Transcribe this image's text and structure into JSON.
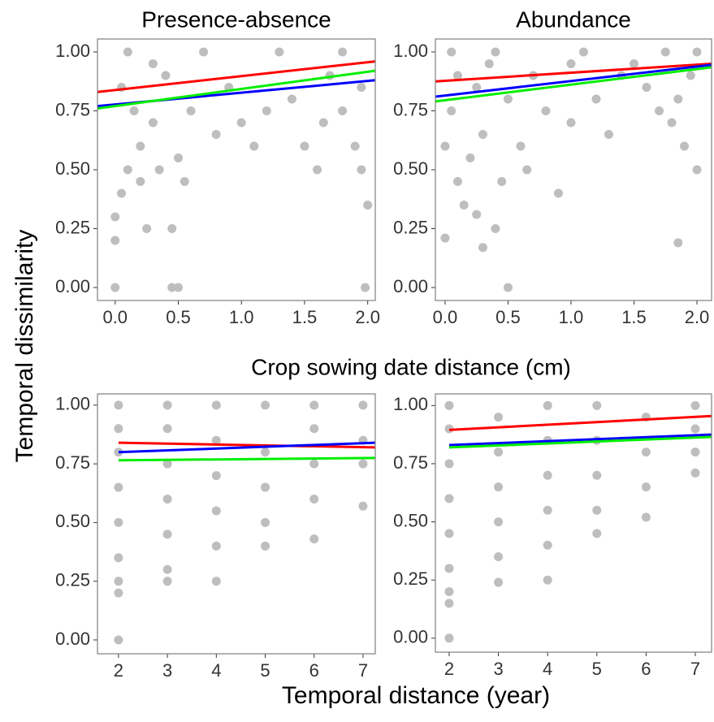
{
  "figure": {
    "ylabel": "Temporal dissimilarity",
    "xlabel": "Temporal distance (year)",
    "section_label": "Crop sowing date distance (cm)"
  },
  "chart_data": [
    {
      "type": "scatter",
      "title": "Presence-absence",
      "xlim": [
        -0.14,
        2.06
      ],
      "xticks": [
        {
          "value": 0,
          "label": "0.0"
        },
        {
          "value": 0.5,
          "label": "0.5"
        },
        {
          "value": 1,
          "label": "1.0"
        },
        {
          "value": 1.5,
          "label": "1.5"
        },
        {
          "value": 2,
          "label": "2.0"
        }
      ],
      "ylim": [
        -0.055,
        1.055
      ],
      "yticks": [
        {
          "value": 0,
          "label": "0.00"
        },
        {
          "value": 0.25,
          "label": "0.25"
        },
        {
          "value": 0.5,
          "label": "0.50"
        },
        {
          "value": 0.75,
          "label": "0.75"
        },
        {
          "value": 1,
          "label": "1.00"
        }
      ],
      "points": {
        "color": "#bebebe",
        "x": [
          0,
          0.45,
          0.5,
          1.98,
          0,
          0,
          0.05,
          0.1,
          0.2,
          0.3,
          0.4,
          0.5,
          0.6,
          0.25,
          0.45,
          0.7,
          0.8,
          0.9,
          1.0,
          1.1,
          1.2,
          1.3,
          1.4,
          1.5,
          1.6,
          1.7,
          1.8,
          1.9,
          2.0,
          1.95,
          0.1,
          0.3,
          0.15,
          0.35,
          0.55,
          1.8,
          1.95,
          1.65,
          0.05,
          0.2
        ],
        "values": [
          0,
          0,
          0,
          0,
          0.2,
          0.3,
          0.4,
          0.5,
          0.6,
          0.7,
          0.9,
          0.55,
          0.75,
          0.25,
          0.25,
          1,
          0.65,
          0.85,
          0.7,
          0.6,
          0.75,
          1,
          0.8,
          0.6,
          0.5,
          0.9,
          0.75,
          0.6,
          0.35,
          0.5,
          1,
          0.95,
          0.75,
          0.5,
          0.45,
          1,
          0.85,
          0.7,
          0.85,
          0.45
        ]
      },
      "series": [
        {
          "color": "#ff0000",
          "x": [
            -0.14,
            2.06
          ],
          "values": [
            0.83,
            0.96
          ]
        },
        {
          "color": "#0000ff",
          "x": [
            -0.14,
            2.06
          ],
          "values": [
            0.77,
            0.88
          ]
        },
        {
          "color": "#00ee00",
          "x": [
            -0.14,
            2.06
          ],
          "values": [
            0.76,
            0.92
          ]
        }
      ]
    },
    {
      "type": "scatter",
      "title": "Abundance",
      "xlim": [
        -0.077,
        2.116
      ],
      "xticks": [
        {
          "value": 0,
          "label": "0.0"
        },
        {
          "value": 0.5,
          "label": "0.5"
        },
        {
          "value": 1,
          "label": "1.0"
        },
        {
          "value": 1.5,
          "label": "1.5"
        },
        {
          "value": 2,
          "label": "2.0"
        }
      ],
      "ylim": [
        -0.055,
        1.055
      ],
      "yticks": [
        {
          "value": 0,
          "label": "0.00"
        },
        {
          "value": 0.25,
          "label": "0.25"
        },
        {
          "value": 0.5,
          "label": "0.50"
        },
        {
          "value": 0.75,
          "label": "0.75"
        },
        {
          "value": 1,
          "label": "1.00"
        }
      ],
      "points": {
        "color": "#bebebe",
        "x": [
          0.5,
          0,
          1.85,
          0.3,
          0.25,
          0.4,
          0.1,
          0.2,
          0.3,
          0.05,
          0.1,
          0.4,
          0.5,
          0.6,
          0.7,
          0.8,
          0.9,
          1.0,
          1.1,
          1.2,
          1.3,
          1.4,
          1.5,
          1.6,
          1.7,
          1.8,
          1.9,
          2.0,
          1.95,
          2.0,
          1.75,
          0.15,
          0.0,
          0.45,
          0.65,
          1.85,
          0.25,
          0.35,
          0.05,
          1.0
        ],
        "values": [
          0,
          0.21,
          0.19,
          0.17,
          0.31,
          0.25,
          0.45,
          0.55,
          0.65,
          0.75,
          0.9,
          1,
          0.8,
          0.6,
          0.9,
          0.75,
          0.4,
          0.7,
          1,
          0.8,
          0.65,
          0.9,
          0.95,
          0.85,
          0.75,
          0.7,
          0.6,
          0.5,
          0.9,
          1,
          1,
          0.35,
          0.6,
          0.45,
          0.5,
          0.8,
          0.85,
          0.95,
          1,
          0.95
        ]
      },
      "series": [
        {
          "color": "#ff0000",
          "x": [
            -0.077,
            2.116
          ],
          "values": [
            0.875,
            0.95
          ]
        },
        {
          "color": "#0000ff",
          "x": [
            -0.077,
            2.116
          ],
          "values": [
            0.81,
            0.945
          ]
        },
        {
          "color": "#00ee00",
          "x": [
            -0.077,
            2.116
          ],
          "values": [
            0.79,
            0.935
          ]
        }
      ]
    },
    {
      "type": "scatter",
      "xlim": [
        1.57,
        7.25
      ],
      "xticks": [
        2,
        3,
        4,
        5,
        6,
        7
      ],
      "ylim": [
        -0.059,
        1.048
      ],
      "yticks": [
        {
          "value": 0,
          "label": "0.00"
        },
        {
          "value": 0.25,
          "label": "0.25"
        },
        {
          "value": 0.5,
          "label": "0.50"
        },
        {
          "value": 0.75,
          "label": "0.75"
        },
        {
          "value": 1,
          "label": "1.00"
        }
      ],
      "points": {
        "color": "#bebebe",
        "x": [
          2,
          2,
          2,
          2,
          2,
          2,
          2,
          2,
          2,
          3,
          3,
          3,
          3,
          3,
          3,
          3,
          4,
          4,
          4,
          4,
          4,
          4,
          5,
          5,
          5,
          5,
          5,
          6,
          6,
          6,
          6,
          6,
          7,
          7,
          7,
          7
        ],
        "values": [
          0,
          0.2,
          0.25,
          0.35,
          0.5,
          0.65,
          0.8,
          0.9,
          1,
          0.25,
          0.3,
          0.45,
          0.6,
          0.75,
          0.9,
          1,
          0.25,
          0.4,
          0.55,
          0.7,
          0.85,
          1,
          0.4,
          0.5,
          0.65,
          0.8,
          1,
          0.43,
          0.6,
          0.75,
          0.9,
          1,
          0.57,
          0.75,
          0.85,
          1
        ]
      },
      "series": [
        {
          "color": "#ff0000",
          "x": [
            2,
            7.25
          ],
          "values": [
            0.84,
            0.82
          ]
        },
        {
          "color": "#0000ff",
          "x": [
            2,
            7.25
          ],
          "values": [
            0.8,
            0.84
          ]
        },
        {
          "color": "#00ee00",
          "x": [
            2,
            7.25
          ],
          "values": [
            0.765,
            0.775
          ]
        }
      ]
    },
    {
      "type": "scatter",
      "xlim": [
        1.72,
        7.33
      ],
      "xticks": [
        2,
        3,
        4,
        5,
        6,
        7
      ],
      "ylim": [
        -0.06,
        1.05
      ],
      "yticks": [
        {
          "value": 0,
          "label": "0.00"
        },
        {
          "value": 0.25,
          "label": "0.25"
        },
        {
          "value": 0.5,
          "label": "0.50"
        },
        {
          "value": 0.75,
          "label": "0.75"
        },
        {
          "value": 1,
          "label": "1.00"
        }
      ],
      "points": {
        "color": "#bebebe",
        "x": [
          2,
          2,
          2,
          2,
          2,
          2,
          2,
          2,
          2,
          3,
          3,
          3,
          3,
          3,
          3,
          4,
          4,
          4,
          4,
          4,
          4,
          5,
          5,
          5,
          5,
          5,
          6,
          6,
          6,
          6,
          7,
          7,
          7,
          7
        ],
        "values": [
          0,
          0.15,
          0.2,
          0.3,
          0.45,
          0.6,
          0.75,
          0.9,
          1,
          0.24,
          0.35,
          0.5,
          0.65,
          0.8,
          0.95,
          0.25,
          0.4,
          0.55,
          0.7,
          0.85,
          1,
          0.45,
          0.55,
          0.7,
          0.85,
          1,
          0.52,
          0.65,
          0.8,
          0.95,
          0.71,
          0.8,
          0.9,
          1
        ]
      },
      "series": [
        {
          "color": "#ff0000",
          "x": [
            2,
            7.33
          ],
          "values": [
            0.895,
            0.955
          ]
        },
        {
          "color": "#0000ff",
          "x": [
            2,
            7.33
          ],
          "values": [
            0.83,
            0.875
          ]
        },
        {
          "color": "#00ee00",
          "x": [
            2,
            7.33
          ],
          "values": [
            0.82,
            0.865
          ]
        }
      ]
    }
  ]
}
